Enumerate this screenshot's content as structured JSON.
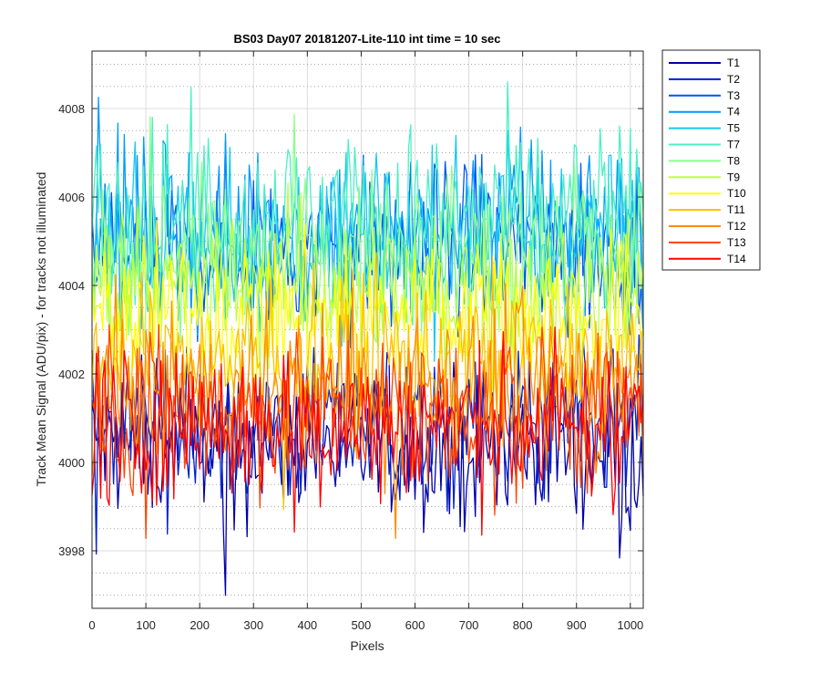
{
  "chart_data": {
    "type": "line",
    "title": "BS03 Day07 20181207-Lite-110 int time = 10 sec",
    "xlabel": "Pixels",
    "ylabel": "Track Mean Signal (ADU/pix) - for tracks not illuminated",
    "xlim": [
      0,
      1024
    ],
    "ylim": [
      3996.7,
      4009.3
    ],
    "xticks": [
      0,
      100,
      200,
      300,
      400,
      500,
      600,
      700,
      800,
      900,
      1000
    ],
    "yticks": [
      3998,
      4000,
      4002,
      4004,
      4006,
      4008
    ],
    "grid": true,
    "legend_position": "outside-top-right",
    "x_step": 4,
    "series": [
      {
        "name": "T1",
        "color": "#0000a8",
        "mean": 4000.4,
        "noise": 0.9
      },
      {
        "name": "T2",
        "color": "#0022cc",
        "mean": 4000.7,
        "noise": 0.9
      },
      {
        "name": "T3",
        "color": "#0055ee",
        "mean": 4004.8,
        "noise": 1.0
      },
      {
        "name": "T4",
        "color": "#0099ff",
        "mean": 4005.2,
        "noise": 1.0
      },
      {
        "name": "T5",
        "color": "#19c8f0",
        "mean": 4005.0,
        "noise": 1.0
      },
      {
        "name": "T7",
        "color": "#4af0c4",
        "mean": 4005.6,
        "noise": 1.0
      },
      {
        "name": "T8",
        "color": "#8cff8c",
        "mean": 4004.6,
        "noise": 1.0
      },
      {
        "name": "T9",
        "color": "#bfff40",
        "mean": 4003.9,
        "noise": 0.9
      },
      {
        "name": "T10",
        "color": "#ffff00",
        "mean": 4003.3,
        "noise": 0.9
      },
      {
        "name": "T11",
        "color": "#ffc000",
        "mean": 4002.3,
        "noise": 0.9
      },
      {
        "name": "T12",
        "color": "#ff8c00",
        "mean": 4001.7,
        "noise": 0.9
      },
      {
        "name": "T13",
        "color": "#ff4400",
        "mean": 4001.2,
        "noise": 0.9
      },
      {
        "name": "T14",
        "color": "#ff0000",
        "mean": 4000.8,
        "noise": 0.9
      }
    ]
  }
}
